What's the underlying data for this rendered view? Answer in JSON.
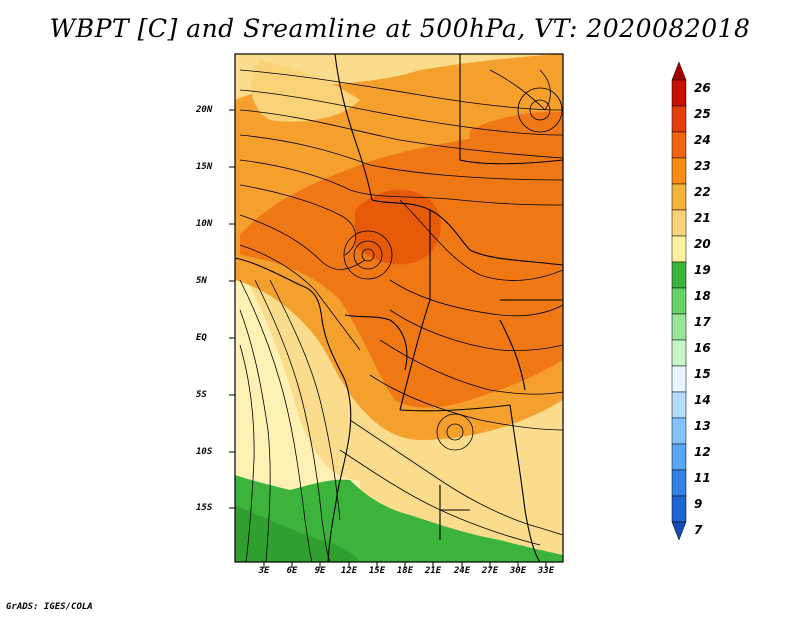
{
  "title": "WBPT [C] and Sreamline at 500hPa, VT: 2020082018",
  "credit": "GrADS: IGES/COLA",
  "map": {
    "lat_labels": [
      "20N",
      "15N",
      "10N",
      "5N",
      "EQ",
      "5S",
      "10S",
      "15S"
    ],
    "lon_labels": [
      "3E",
      "6E",
      "9E",
      "12E",
      "15E",
      "18E",
      "21E",
      "24E",
      "27E",
      "30E",
      "33E"
    ],
    "lon_range": [
      0,
      34
    ],
    "lat_range": [
      -20,
      24.5
    ]
  },
  "colorbar": {
    "labels": [
      "26",
      "25",
      "24",
      "23",
      "22",
      "21",
      "20",
      "19",
      "18",
      "17",
      "16",
      "15",
      "14",
      "13",
      "12",
      "11",
      "9",
      "7"
    ],
    "colors": [
      "#a50000",
      "#c80f00",
      "#e63c0a",
      "#f0640f",
      "#fa8c14",
      "#f5b43c",
      "#fad278",
      "#fff0a0",
      "#3cb43c",
      "#64d264",
      "#96e696",
      "#c8f5c8",
      "#e6f5ff",
      "#b4dcff",
      "#82c3ff",
      "#5aa5f5",
      "#3282e6",
      "#1e64d2",
      "#144bb4"
    ]
  }
}
